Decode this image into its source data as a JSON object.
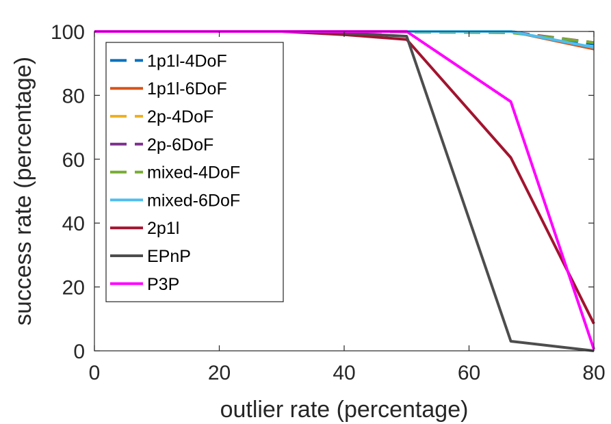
{
  "chart_data": {
    "type": "line",
    "title": "",
    "xlabel": "outlier rate (percentage)",
    "ylabel": "success rate (percentage)",
    "xlim": [
      0,
      80
    ],
    "ylim": [
      0,
      100
    ],
    "xticks": [
      0,
      20,
      40,
      60,
      80
    ],
    "yticks": [
      0,
      20,
      40,
      60,
      80,
      100
    ],
    "x": [
      0,
      10,
      20,
      30,
      40,
      50,
      66.7,
      80
    ],
    "grid": false,
    "legend_position": "top-left",
    "series": [
      {
        "name": "1p1l-4DoF",
        "color": "#0072BD",
        "dashed": true,
        "values": [
          100,
          100,
          100,
          100,
          100,
          100,
          100,
          96
        ]
      },
      {
        "name": "1p1l-6DoF",
        "color": "#D95319",
        "dashed": false,
        "values": [
          100,
          100,
          100,
          100,
          100,
          100,
          100,
          94.5
        ]
      },
      {
        "name": "2p-4DoF",
        "color": "#EDB120",
        "dashed": true,
        "values": [
          100,
          100,
          100,
          100,
          100,
          100,
          99.8,
          96.5
        ]
      },
      {
        "name": "2p-6DoF",
        "color": "#7E2F8E",
        "dashed": true,
        "values": [
          100,
          100,
          100,
          100,
          100,
          100,
          99.8,
          96.5
        ]
      },
      {
        "name": "mixed-4DoF",
        "color": "#77AC30",
        "dashed": true,
        "values": [
          100,
          100,
          100,
          100,
          100,
          99.8,
          99.6,
          96.5
        ]
      },
      {
        "name": "mixed-6DoF",
        "color": "#4DBEEE",
        "dashed": false,
        "values": [
          100,
          100,
          100,
          100,
          100,
          100,
          100,
          95
        ]
      },
      {
        "name": "2p1l",
        "color": "#A2142F",
        "dashed": false,
        "values": [
          100,
          100,
          100,
          100,
          99,
          97.5,
          60.5,
          8.5
        ]
      },
      {
        "name": "EPnP",
        "color": "#4D4D4D",
        "dashed": false,
        "values": [
          100,
          100,
          100,
          100,
          99.5,
          98.5,
          3,
          0
        ]
      },
      {
        "name": "P3P",
        "color": "#FF00FF",
        "dashed": false,
        "values": [
          100,
          100,
          100,
          100,
          100,
          100,
          78,
          0.5
        ]
      }
    ]
  }
}
